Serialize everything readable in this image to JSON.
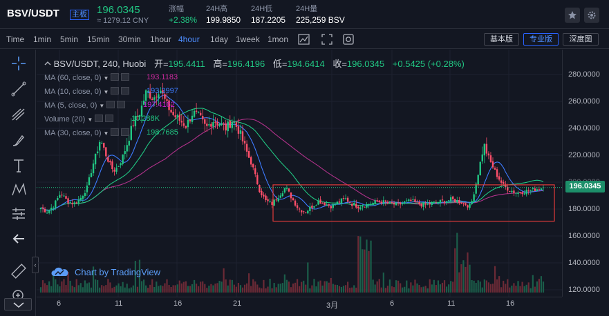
{
  "header": {
    "pair": "BSV/USDT",
    "badge": "主板",
    "price": "196.0345",
    "price_cny": "≈ 1279.12 CNY",
    "stats": [
      {
        "label": "涨幅",
        "value": "+2.38%",
        "up": true
      },
      {
        "label": "24H高",
        "value": "199.9850",
        "up": false
      },
      {
        "label": "24H低",
        "value": "187.2205",
        "up": false
      },
      {
        "label": "24H量",
        "value": "225,259 BSV",
        "up": false
      }
    ],
    "icons": [
      "star-icon",
      "settings-icon"
    ]
  },
  "toolbar": {
    "intervals": [
      "Time",
      "1min",
      "5min",
      "15min",
      "30min",
      "1hour",
      "4hour",
      "1day",
      "1week",
      "1mon"
    ],
    "active_interval": "4hour",
    "icons": [
      "indicators-icon",
      "fullscreen-icon",
      "screenshot-icon"
    ],
    "version_buttons": [
      "基本版",
      "专业版",
      "深度图"
    ],
    "active_version": "专业版"
  },
  "drawing_tools": [
    "crosshair-icon",
    "trend-line-icon",
    "fib-retracement-icon",
    "brush-icon",
    "text-icon",
    "pattern-icon",
    "measure-icon",
    "back-arrow-icon",
    "ruler-icon",
    "zoom-in-icon"
  ],
  "legend": {
    "symbol": "BSV/USDT, 240, Huobi",
    "ohlc": [
      {
        "k": "开=",
        "v": "195.4411"
      },
      {
        "k": "高=",
        "v": "196.4196"
      },
      {
        "k": "低=",
        "v": "194.6414"
      },
      {
        "k": "收=",
        "v": "196.0345"
      }
    ],
    "change": "+0.5425 (+0.28%)",
    "indicators": [
      {
        "name": "MA (60, close, 0)",
        "value": "193.1183",
        "color": "#d02aa0"
      },
      {
        "name": "MA (10, close, 0)",
        "value": "193.3997",
        "color": "#3d7bff"
      },
      {
        "name": "MA (5, close, 0)",
        "value": "197.4162",
        "color": "#c71fd1"
      },
      {
        "name": "Volume (20)",
        "value": "10.288K",
        "color": "#21c783"
      },
      {
        "name": "MA (30, close, 0)",
        "value": "198.7685",
        "color": "#21c783"
      }
    ]
  },
  "watermark": "Chart by TradingView",
  "price_axis": {
    "labels": [
      "280.0000",
      "260.0000",
      "240.0000",
      "220.0000",
      "200.0000",
      "180.0000",
      "160.0000",
      "140.0000",
      "120.0000"
    ],
    "current": "196.0345"
  },
  "time_axis": {
    "labels": [
      "6",
      "11",
      "16",
      "21",
      "3月",
      "6",
      "11",
      "16"
    ]
  },
  "colors": {
    "up": "#21c783",
    "down": "#ff4f6a",
    "accent": "#2962ff",
    "ma_blue": "#3d7bff",
    "ma_magenta": "#b0328a",
    "ma_green": "#21c783",
    "highlight_box": "#e23b3b"
  },
  "chart_data": {
    "type": "candlestick",
    "title": "BSV/USDT, 240, Huobi",
    "xlabel": "",
    "ylabel": "",
    "ylim": [
      115,
      292
    ],
    "x_ticks": [
      "6",
      "11",
      "16",
      "21",
      "3月",
      "6",
      "11",
      "16"
    ],
    "close_path": [
      181,
      178,
      183,
      192,
      186,
      184,
      188,
      196,
      215,
      232,
      218,
      208,
      214,
      228,
      244,
      252,
      268,
      262,
      270,
      258,
      250,
      246,
      242,
      252,
      248,
      240,
      246,
      244,
      240,
      246,
      238,
      224,
      212,
      195,
      186,
      184,
      190,
      196,
      188,
      180,
      178,
      182,
      186,
      184,
      182,
      185,
      188,
      184,
      182,
      183,
      184,
      186,
      185,
      184,
      183,
      185,
      186,
      184,
      183,
      184,
      185,
      186,
      187,
      186,
      184,
      182,
      203,
      228,
      215,
      205,
      197,
      194,
      192,
      193,
      194,
      195,
      196
    ],
    "last_price": 196.0345,
    "highlight_box": {
      "price_high": 198,
      "price_low": 171
    }
  }
}
